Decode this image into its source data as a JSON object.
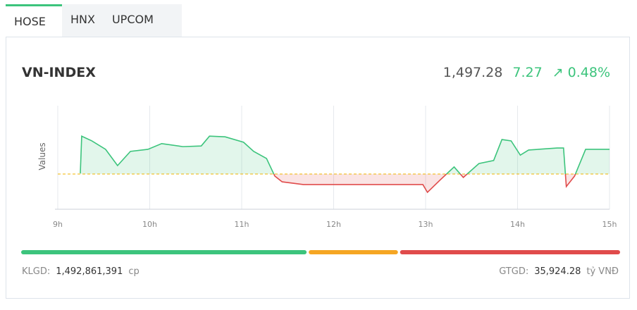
{
  "tabs": [
    "HOSE",
    "HNX",
    "UPCOM"
  ],
  "active_tab": 0,
  "header": {
    "title": "VN-INDEX",
    "index": "1,497.28",
    "change": "7.27",
    "change_percent": "0.48%"
  },
  "chart_data": {
    "type": "line",
    "y_label": "Values",
    "x": [
      9.245,
      9.26,
      9.37,
      9.52,
      9.65,
      9.79,
      9.98,
      10.13,
      10.36,
      10.56,
      10.65,
      10.82,
      11.02,
      11.13,
      11.27,
      11.36,
      11.44,
      11.67,
      12.51,
      12.97,
      13.02,
      13.16,
      13.31,
      13.41,
      13.58,
      13.74,
      13.83,
      13.93,
      14.03,
      14.12,
      14.43,
      14.5,
      14.53,
      14.62,
      14.74,
      15.0
    ],
    "values": [
      1490.2,
      1501.2,
      1499.8,
      1497.3,
      1492.5,
      1496.7,
      1497.3,
      1499.0,
      1498.1,
      1498.3,
      1501.2,
      1501.0,
      1499.4,
      1496.7,
      1494.6,
      1489.4,
      1487.7,
      1486.9,
      1486.9,
      1486.9,
      1484.6,
      1488.3,
      1492.1,
      1489.0,
      1493.1,
      1494.0,
      1500.2,
      1499.8,
      1495.6,
      1497.1,
      1497.7,
      1497.7,
      1486.3,
      1489.4,
      1497.3,
      1497.3
    ],
    "reference": 1490.01,
    "up_color": "#3cc47c",
    "down_color": "#e04b4b",
    "reference_color": "#f0b400",
    "xlim": [
      9,
      15
    ],
    "ylim": [
      1479.6,
      1510.2
    ],
    "xticks": [
      {
        "value": 9,
        "label": "9h"
      },
      {
        "value": 10,
        "label": "10h"
      },
      {
        "value": 11,
        "label": "11h"
      },
      {
        "value": 12,
        "label": "12h"
      },
      {
        "value": 13,
        "label": "13h"
      },
      {
        "value": 14,
        "label": "14h"
      },
      {
        "value": 15,
        "label": "15h"
      }
    ],
    "grid": true
  },
  "breadth": {
    "values": [
      48,
      15,
      37
    ],
    "colors": [
      "#3cc47c",
      "#f5a623",
      "#e04b4b"
    ]
  },
  "footer": {
    "volume_label": "KLGD:",
    "volume": "1,492,861,391",
    "volume_unit": "cp",
    "value_label": "GTGD:",
    "value": "35,924.28",
    "value_unit": "tỷ VNĐ"
  }
}
